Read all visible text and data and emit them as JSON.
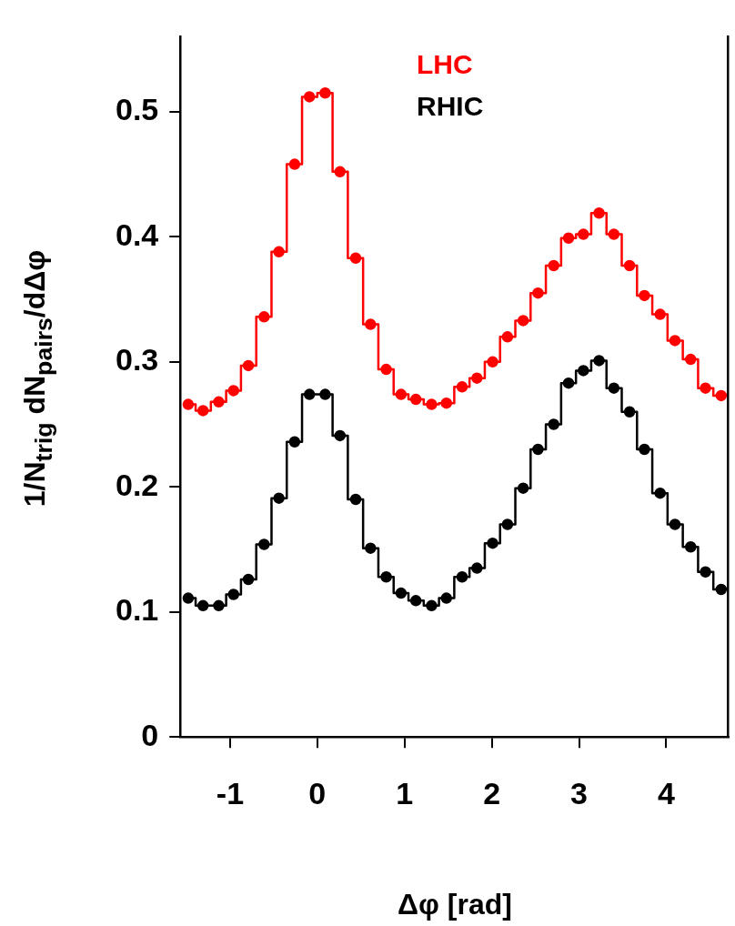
{
  "chart_data": {
    "type": "step",
    "xlabel": "Δφ [rad]",
    "ylabel": "1/N$_{trig}$ dN$_{pairs}$/dΔφ",
    "x": [
      -1.48,
      -1.31,
      -1.13,
      -0.96,
      -0.79,
      -0.61,
      -0.44,
      -0.26,
      -0.09,
      0.09,
      0.26,
      0.44,
      0.61,
      0.79,
      0.96,
      1.13,
      1.31,
      1.48,
      1.66,
      1.83,
      2.01,
      2.18,
      2.36,
      2.53,
      2.71,
      2.88,
      3.05,
      3.23,
      3.4,
      3.58,
      3.75,
      3.93,
      4.1,
      4.28,
      4.45,
      4.63
    ],
    "series": [
      {
        "name": "LHC",
        "color": "#ff0000",
        "values": [
          0.266,
          0.261,
          0.268,
          0.277,
          0.297,
          0.336,
          0.388,
          0.458,
          0.512,
          0.515,
          0.452,
          0.383,
          0.33,
          0.294,
          0.274,
          0.27,
          0.266,
          0.267,
          0.28,
          0.287,
          0.3,
          0.32,
          0.333,
          0.355,
          0.377,
          0.399,
          0.402,
          0.419,
          0.402,
          0.377,
          0.353,
          0.338,
          0.317,
          0.302,
          0.279,
          0.273
        ]
      },
      {
        "name": "RHIC",
        "color": "#000000",
        "values": [
          0.111,
          0.105,
          0.105,
          0.114,
          0.126,
          0.154,
          0.191,
          0.236,
          0.274,
          0.274,
          0.241,
          0.19,
          0.151,
          0.128,
          0.115,
          0.109,
          0.105,
          0.111,
          0.128,
          0.135,
          0.155,
          0.17,
          0.199,
          0.23,
          0.25,
          0.283,
          0.293,
          0.301,
          0.279,
          0.26,
          0.23,
          0.195,
          0.17,
          0.152,
          0.132,
          0.118
        ]
      }
    ],
    "xlim": [
      -1.57,
      4.71
    ],
    "xticks": [
      -1,
      0,
      1,
      2,
      3,
      4
    ],
    "ylim": [
      0,
      0.56
    ],
    "yticks": [
      0,
      0.1,
      0.2,
      0.3,
      0.4,
      0.5
    ],
    "legend": "top right",
    "marker": "circle",
    "line_style": "solid"
  }
}
